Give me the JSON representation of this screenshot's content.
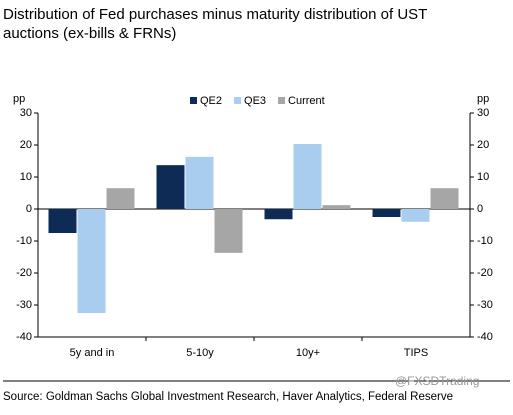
{
  "chart_data": {
    "type": "bar",
    "title": [
      "Distribution of Fed purchases minus maturity distribution of UST",
      "auctions (ex-bills & FRNs)"
    ],
    "ylabel": "pp",
    "y2label": "pp",
    "categories": [
      "5y and in",
      "5-10y",
      "10y+",
      "TIPS"
    ],
    "series": [
      {
        "name": "QE2",
        "color": "#0d2b55",
        "values": [
          -7.5,
          13.7,
          -3.2,
          -2.5
        ]
      },
      {
        "name": "QE3",
        "color": "#a9cdee",
        "values": [
          -32.5,
          16.3,
          20.3,
          -4
        ]
      },
      {
        "name": "Current",
        "color": "#a6a6a6",
        "values": [
          6.5,
          -13.7,
          1.2,
          6.5
        ]
      }
    ],
    "ylim": [
      -40,
      30
    ],
    "yticks": [
      -40,
      -30,
      -20,
      -10,
      0,
      10,
      20,
      30
    ],
    "y2lim": [
      -40,
      30
    ],
    "y2ticks": [
      -40,
      -30,
      -20,
      -10,
      0,
      10,
      20,
      30
    ],
    "legend": "top",
    "source": "Source: Goldman Sachs Global Investment Research, Haver Analytics, Federal Reserve",
    "watermark": "@FXSDTrading"
  }
}
